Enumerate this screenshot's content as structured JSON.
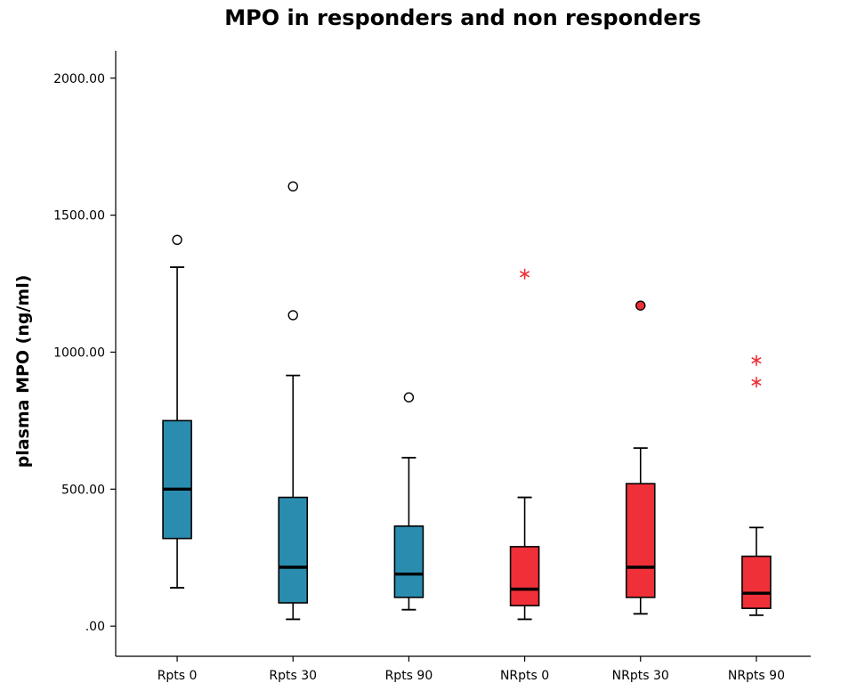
{
  "chart_data": {
    "type": "boxplot",
    "title": "MPO in responders and non responders",
    "xlabel": "",
    "ylabel": "plasma MPO (ng/ml)",
    "ylim": [
      -110,
      2100
    ],
    "y_ticks": [
      {
        "value": 0,
        "label": ".00"
      },
      {
        "value": 500,
        "label": "500.00"
      },
      {
        "value": 1000,
        "label": "1000.00"
      },
      {
        "value": 1500,
        "label": "1500.00"
      },
      {
        "value": 2000,
        "label": "2000.00"
      }
    ],
    "grid": false,
    "categories": [
      "Rpts 0",
      "Rpts 30",
      "Rpts 90",
      "NRpts 0",
      "NRpts 30",
      "NRpts 90"
    ],
    "boxes": [
      {
        "category": "Rpts 0",
        "color": "#2a8db0",
        "whisker_low": 140,
        "q1": 320,
        "median": 500,
        "q3": 750,
        "whisker_high": 1310,
        "outliers": [
          {
            "value": 1410,
            "marker": "open-circle"
          }
        ]
      },
      {
        "category": "Rpts 30",
        "color": "#2a8db0",
        "whisker_low": 25,
        "q1": 85,
        "median": 215,
        "q3": 470,
        "whisker_high": 915,
        "outliers": [
          {
            "value": 1605,
            "marker": "open-circle"
          },
          {
            "value": 1135,
            "marker": "open-circle"
          }
        ]
      },
      {
        "category": "Rpts 90",
        "color": "#2a8db0",
        "whisker_low": 60,
        "q1": 105,
        "median": 190,
        "q3": 365,
        "whisker_high": 615,
        "outliers": [
          {
            "value": 835,
            "marker": "open-circle"
          }
        ]
      },
      {
        "category": "NRpts 0",
        "color": "#ef3038",
        "whisker_low": 25,
        "q1": 75,
        "median": 135,
        "q3": 290,
        "whisker_high": 470,
        "outliers": [
          {
            "value": 1285,
            "marker": "star"
          }
        ]
      },
      {
        "category": "NRpts 30",
        "color": "#ef3038",
        "whisker_low": 45,
        "q1": 105,
        "median": 215,
        "q3": 520,
        "whisker_high": 650,
        "outliers": [
          {
            "value": 1170,
            "marker": "filled-circle"
          }
        ]
      },
      {
        "category": "NRpts 90",
        "color": "#ef3038",
        "whisker_low": 40,
        "q1": 65,
        "median": 120,
        "q3": 255,
        "whisker_high": 360,
        "outliers": [
          {
            "value": 970,
            "marker": "star"
          },
          {
            "value": 890,
            "marker": "star"
          }
        ]
      }
    ]
  }
}
